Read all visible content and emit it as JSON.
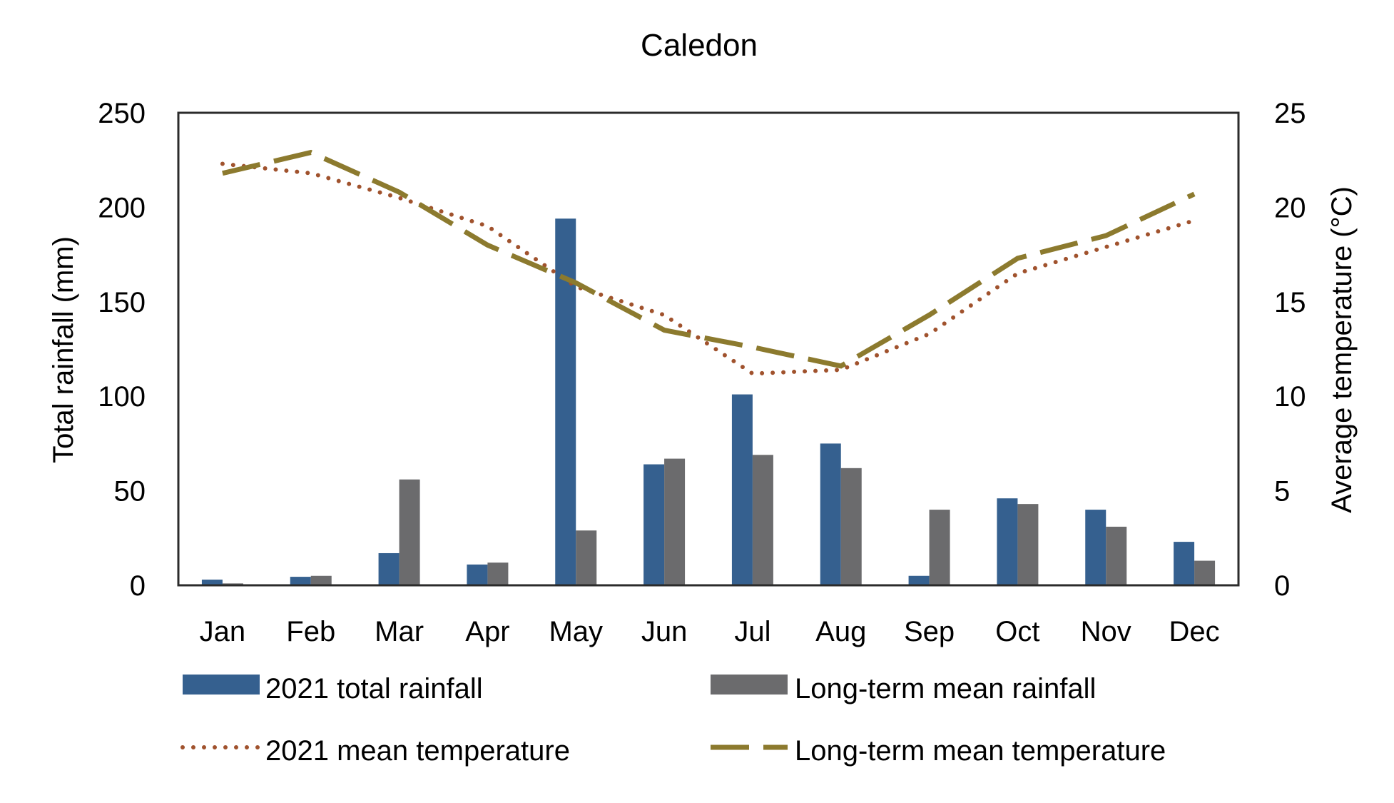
{
  "chart_data": {
    "type": "bar",
    "title": "Caledon",
    "xlabel": "",
    "ylabel": "Total rainfall (mm)",
    "y2label": "Average temperature (°C)",
    "categories": [
      "Jan",
      "Feb",
      "Mar",
      "Apr",
      "May",
      "Jun",
      "Jul",
      "Aug",
      "Sep",
      "Oct",
      "Nov",
      "Dec"
    ],
    "ylim": [
      0,
      250
    ],
    "y2lim": [
      0,
      25
    ],
    "yticks": [
      "0",
      "50",
      "100",
      "150",
      "200",
      "250"
    ],
    "y2ticks": [
      "0",
      "5",
      "10",
      "15",
      "20",
      "25"
    ],
    "grid": false,
    "legend_position": "bottom",
    "bar_series": [
      {
        "name": "2021 total rainfall",
        "color": "#35608f",
        "axis": "left",
        "values": [
          3,
          4.5,
          17,
          11,
          194,
          64,
          101,
          75,
          5,
          46,
          40,
          23
        ]
      },
      {
        "name": "Long-term mean rainfall",
        "color": "#6b6b6d",
        "axis": "left",
        "values": [
          1,
          5,
          56,
          12,
          29,
          67,
          69,
          62,
          40,
          43,
          31,
          13
        ]
      }
    ],
    "line_series": [
      {
        "name": "2021 mean temperature",
        "color": "#a0522d",
        "style": "dotted",
        "axis": "right",
        "values": [
          22.3,
          21.8,
          20.5,
          19.0,
          15.8,
          14.3,
          11.2,
          11.4,
          13.3,
          16.5,
          17.9,
          19.3
        ]
      },
      {
        "name": "Long-term mean temperature",
        "color": "#8c7a2e",
        "style": "dashed",
        "axis": "right",
        "values": [
          21.8,
          22.9,
          20.8,
          18.0,
          16.0,
          13.5,
          12.6,
          11.6,
          14.3,
          17.3,
          18.5,
          20.7
        ]
      }
    ]
  }
}
